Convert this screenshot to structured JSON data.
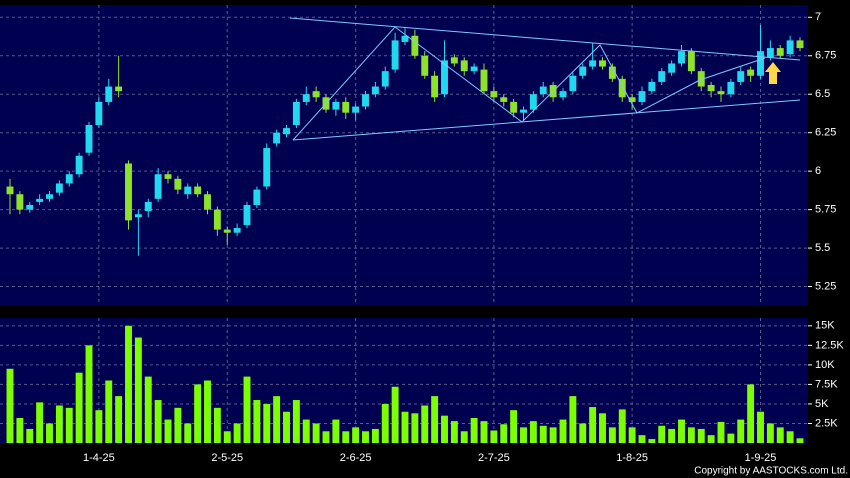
{
  "chart_data": [
    {
      "type": "candlestick",
      "categories": [
        null,
        null,
        null,
        null,
        null,
        null,
        null,
        null,
        null,
        "1-4-25",
        null,
        null,
        null,
        null,
        null,
        null,
        null,
        null,
        null,
        null,
        null,
        null,
        "2-5-25",
        null,
        null,
        null,
        null,
        null,
        null,
        null,
        null,
        null,
        null,
        null,
        null,
        "2-6-25",
        null,
        null,
        null,
        null,
        null,
        null,
        null,
        null,
        null,
        null,
        null,
        null,
        null,
        "2-7-25",
        null,
        null,
        null,
        null,
        null,
        null,
        null,
        null,
        null,
        null,
        null,
        null,
        null,
        "1-8-25",
        null,
        null,
        null,
        null,
        null,
        null,
        null,
        null,
        null,
        null,
        null,
        null,
        "1-9-25",
        null,
        null,
        null,
        null
      ],
      "open": [
        5.9,
        5.85,
        5.75,
        5.8,
        5.82,
        5.86,
        5.92,
        5.98,
        6.12,
        6.3,
        6.45,
        6.55,
        6.05,
        5.7,
        5.74,
        5.82,
        5.98,
        5.95,
        5.85,
        5.9,
        5.85,
        5.75,
        5.62,
        5.6,
        5.65,
        5.78,
        5.9,
        6.18,
        6.24,
        6.3,
        6.45,
        6.52,
        6.48,
        6.4,
        6.45,
        6.38,
        6.42,
        6.5,
        6.55,
        6.66,
        6.84,
        6.88,
        6.75,
        6.62,
        6.5,
        6.74,
        6.72,
        6.65,
        6.66,
        6.52,
        6.48,
        6.45,
        6.38,
        6.4,
        6.5,
        6.56,
        6.48,
        6.52,
        6.62,
        6.68,
        6.72,
        6.68,
        6.6,
        6.48,
        6.45,
        6.52,
        6.58,
        6.64,
        6.7,
        6.78,
        6.65,
        6.56,
        6.52,
        6.5,
        6.58,
        6.66,
        6.62,
        6.74,
        6.8,
        6.76,
        6.85
      ],
      "high": [
        5.95,
        5.87,
        5.8,
        5.85,
        5.87,
        5.94,
        6.0,
        6.12,
        6.32,
        6.48,
        6.6,
        6.75,
        6.07,
        5.75,
        5.82,
        6.02,
        6.0,
        5.97,
        5.92,
        5.92,
        5.87,
        5.77,
        5.64,
        5.66,
        5.8,
        5.9,
        6.18,
        6.27,
        6.3,
        6.47,
        6.55,
        6.55,
        6.5,
        6.47,
        6.48,
        6.44,
        6.52,
        6.58,
        6.68,
        6.9,
        6.93,
        6.92,
        6.78,
        6.65,
        6.85,
        6.76,
        6.74,
        6.7,
        6.7,
        6.55,
        6.5,
        6.47,
        6.42,
        6.52,
        6.58,
        6.58,
        6.54,
        6.64,
        6.7,
        6.83,
        6.74,
        6.7,
        6.62,
        6.5,
        6.55,
        6.6,
        6.67,
        6.72,
        6.82,
        6.8,
        6.67,
        6.58,
        6.55,
        6.6,
        6.68,
        6.68,
        6.95,
        6.85,
        6.82,
        6.88,
        6.87
      ],
      "low": [
        5.72,
        5.72,
        5.73,
        5.78,
        5.8,
        5.84,
        5.9,
        5.96,
        6.1,
        6.28,
        6.43,
        6.48,
        5.62,
        5.45,
        5.7,
        5.8,
        5.92,
        5.85,
        5.82,
        5.83,
        5.72,
        5.58,
        5.52,
        5.58,
        5.63,
        5.76,
        5.88,
        6.16,
        6.22,
        6.28,
        6.43,
        6.45,
        6.38,
        6.36,
        6.34,
        6.33,
        6.4,
        6.48,
        6.53,
        6.64,
        6.82,
        6.73,
        6.6,
        6.45,
        6.48,
        6.68,
        6.62,
        6.63,
        6.5,
        6.45,
        6.42,
        6.35,
        6.33,
        6.38,
        6.48,
        6.45,
        6.46,
        6.5,
        6.6,
        6.66,
        6.66,
        6.58,
        6.45,
        6.4,
        6.43,
        6.5,
        6.56,
        6.62,
        6.68,
        6.63,
        6.52,
        6.48,
        6.45,
        6.48,
        6.56,
        6.58,
        6.6,
        6.72,
        6.73,
        6.74,
        6.78
      ],
      "close": [
        5.85,
        5.75,
        5.78,
        5.82,
        5.85,
        5.92,
        5.98,
        6.1,
        6.3,
        6.45,
        6.55,
        6.52,
        5.68,
        5.72,
        5.8,
        5.98,
        5.95,
        5.88,
        5.9,
        5.85,
        5.75,
        5.62,
        5.6,
        5.63,
        5.78,
        5.88,
        6.15,
        6.25,
        6.28,
        6.45,
        6.5,
        6.48,
        6.4,
        6.45,
        6.38,
        6.42,
        6.5,
        6.55,
        6.65,
        6.85,
        6.88,
        6.75,
        6.62,
        6.48,
        6.72,
        6.7,
        6.65,
        6.68,
        6.52,
        6.48,
        6.45,
        6.38,
        6.4,
        6.5,
        6.55,
        6.48,
        6.52,
        6.62,
        6.68,
        6.72,
        6.68,
        6.6,
        6.48,
        6.45,
        6.52,
        6.58,
        6.65,
        6.7,
        6.78,
        6.65,
        6.55,
        6.52,
        6.5,
        6.58,
        6.65,
        6.62,
        6.78,
        6.8,
        6.75,
        6.85,
        6.8
      ],
      "up_color": "#22d8f0",
      "down_color": "#8fe22a",
      "ylim": [
        5.13,
        7.08
      ],
      "yticks": [
        5.25,
        5.5,
        5.75,
        6,
        6.25,
        6.5,
        6.75,
        7
      ],
      "grid": true
    },
    {
      "type": "bar",
      "values": [
        9500,
        3200,
        1800,
        5200,
        2500,
        4800,
        4500,
        9000,
        12500,
        4200,
        8000,
        6000,
        15000,
        13500,
        8500,
        5500,
        3000,
        4500,
        2500,
        7500,
        8000,
        4500,
        1500,
        2500,
        8500,
        5500,
        5000,
        6000,
        4000,
        5500,
        3000,
        2500,
        1500,
        3000,
        1500,
        2000,
        1500,
        1800,
        5000,
        7200,
        4000,
        3800,
        4800,
        6000,
        3500,
        2800,
        1500,
        3200,
        2800,
        1600,
        2400,
        4200,
        2000,
        2800,
        2200,
        2000,
        3000,
        6000,
        2500,
        4600,
        3800,
        2000,
        4300,
        2000,
        1000,
        500,
        2200,
        1800,
        3000,
        2000,
        1800,
        1000,
        2700,
        1200,
        3000,
        7500,
        4000,
        2500,
        2000,
        1500,
        600
      ],
      "color": "#7cff00",
      "ylim": [
        0,
        16000
      ],
      "yticks": [
        {
          "value": 2500,
          "label": "2.5K"
        },
        {
          "value": 5000,
          "label": "5K"
        },
        {
          "value": 7500,
          "label": "7.5K"
        },
        {
          "value": 10000,
          "label": "10K"
        },
        {
          "value": 12500,
          "label": "12.5K"
        },
        {
          "value": 15000,
          "label": "15K"
        }
      ],
      "grid": true
    }
  ],
  "copyright": "Copyright by AASTOCKS.com Ltd."
}
